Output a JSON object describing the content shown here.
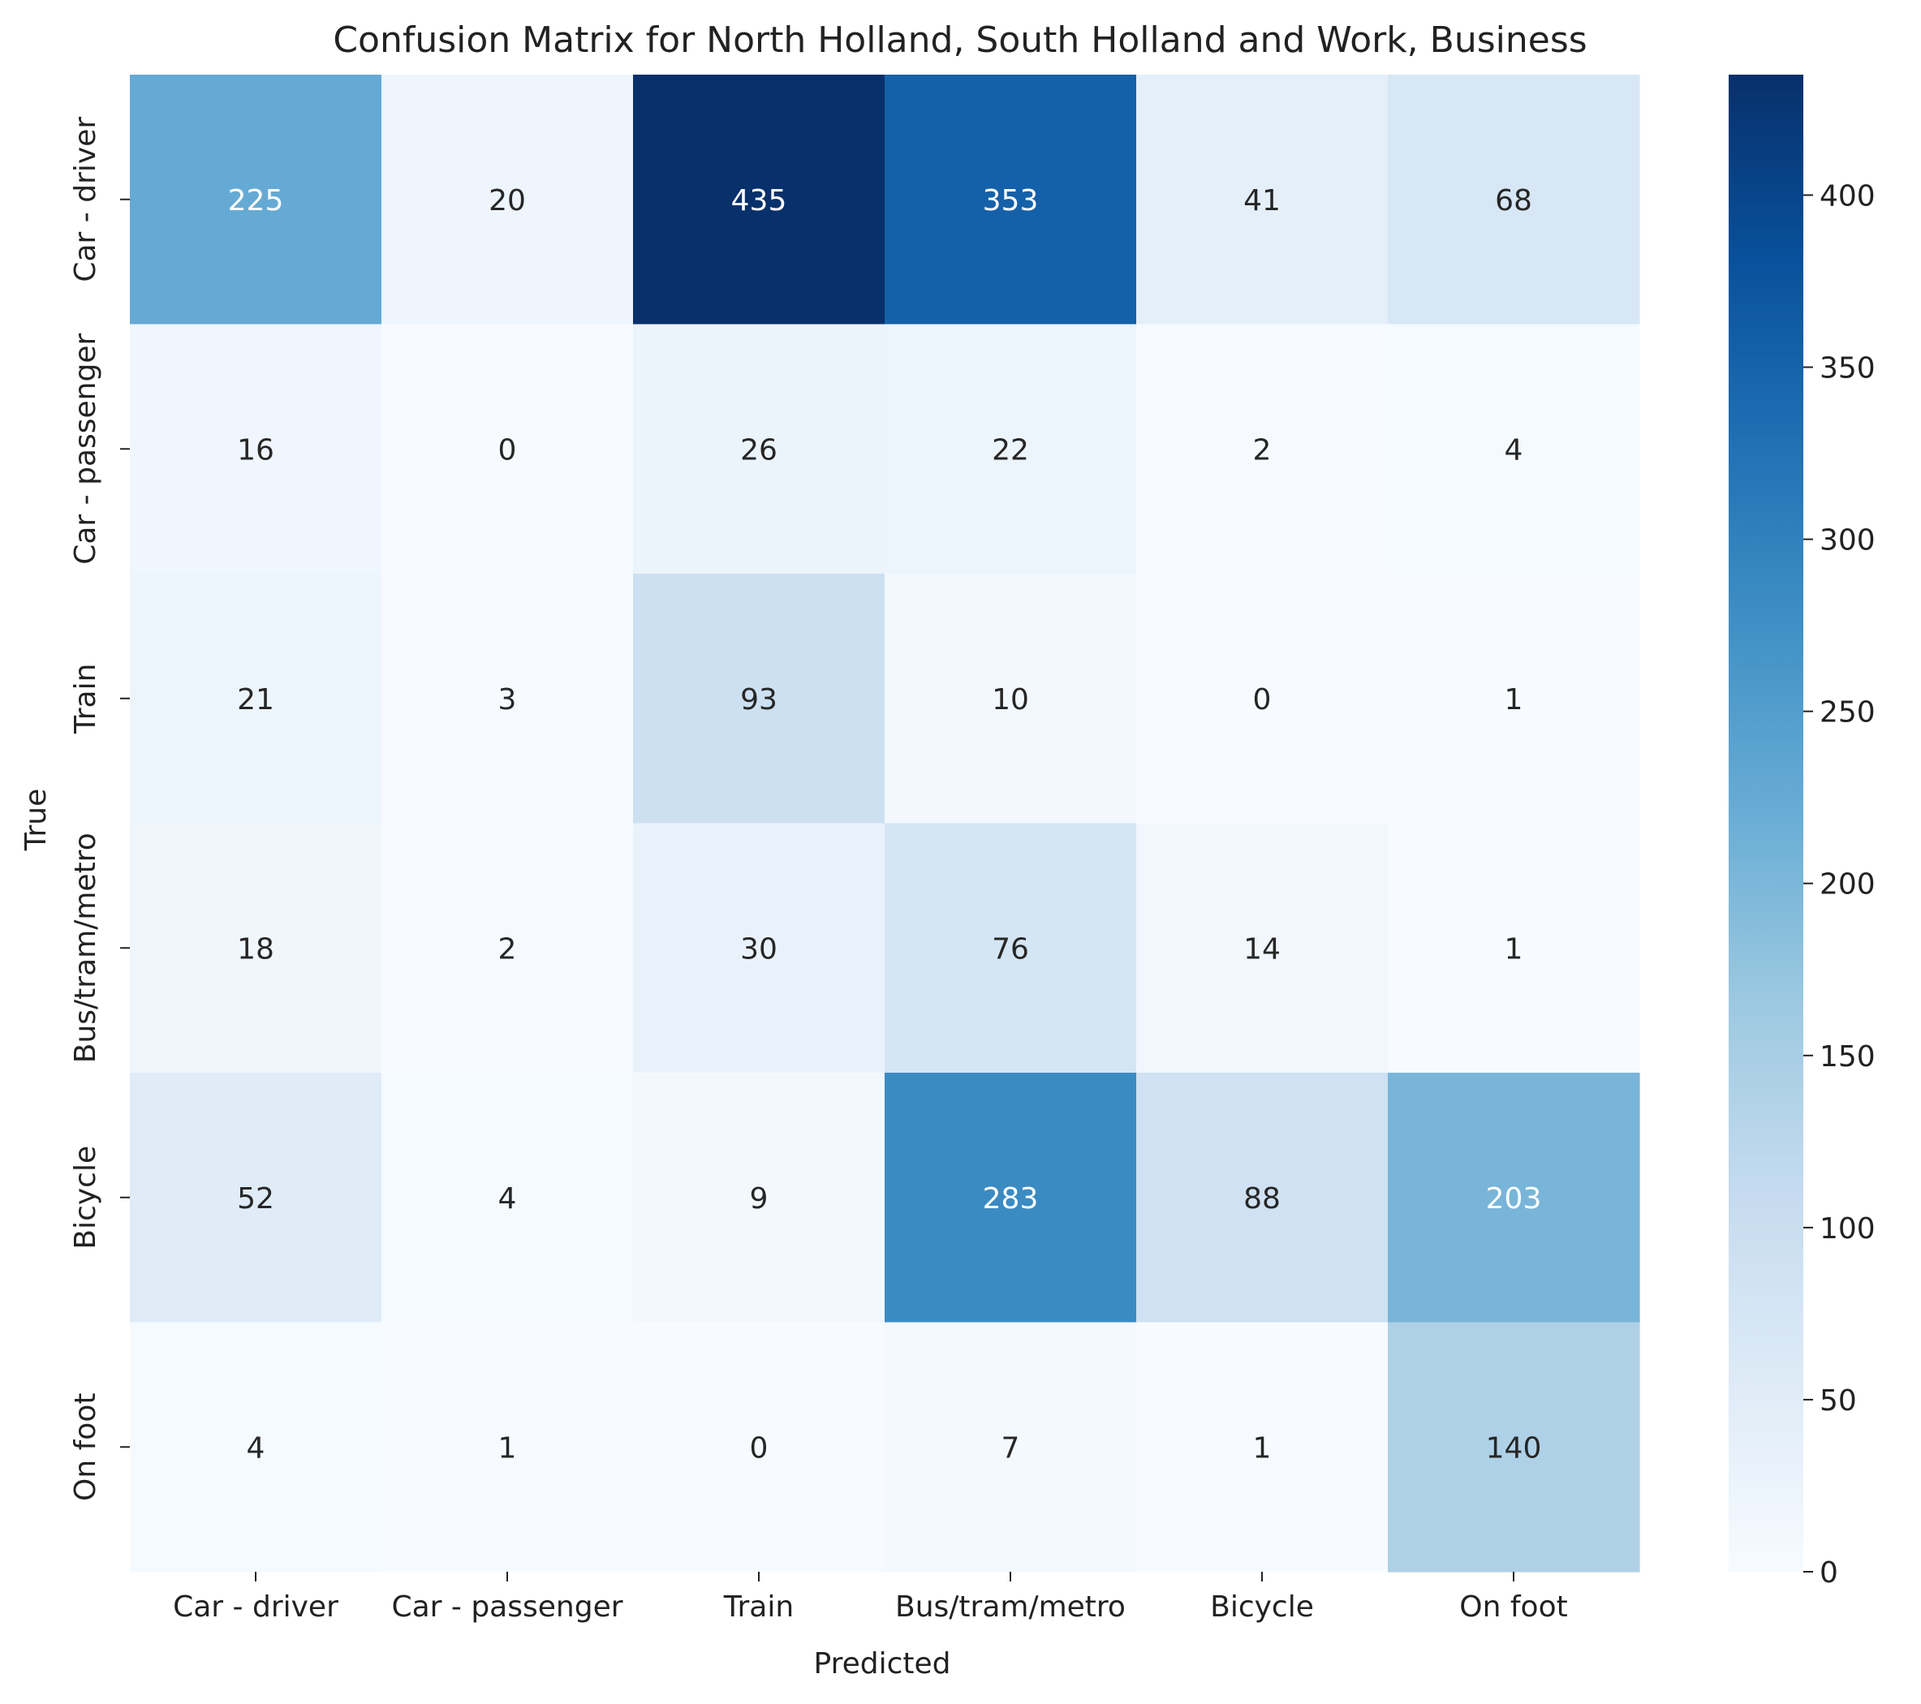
{
  "chart_data": {
    "type": "heatmap",
    "title": "Confusion Matrix for North Holland, South Holland and Work, Business",
    "xlabel": "Predicted",
    "ylabel": "True",
    "x_categories": [
      "Car - driver",
      "Car - passenger",
      "Train",
      "Bus/tram/metro",
      "Bicycle",
      "On foot"
    ],
    "y_categories": [
      "Car - driver",
      "Car - passenger",
      "Train",
      "Bus/tram/metro",
      "Bicycle",
      "On foot"
    ],
    "values": [
      [
        225,
        20,
        435,
        353,
        41,
        68
      ],
      [
        16,
        0,
        26,
        22,
        2,
        4
      ],
      [
        21,
        3,
        93,
        10,
        0,
        1
      ],
      [
        18,
        2,
        30,
        76,
        14,
        1
      ],
      [
        52,
        4,
        9,
        283,
        88,
        203
      ],
      [
        4,
        1,
        0,
        7,
        1,
        140
      ]
    ],
    "colormap": "Blues",
    "colorbar": {
      "range": [
        0,
        435
      ],
      "ticks": [
        0,
        50,
        100,
        150,
        200,
        250,
        300,
        350,
        400
      ]
    }
  }
}
